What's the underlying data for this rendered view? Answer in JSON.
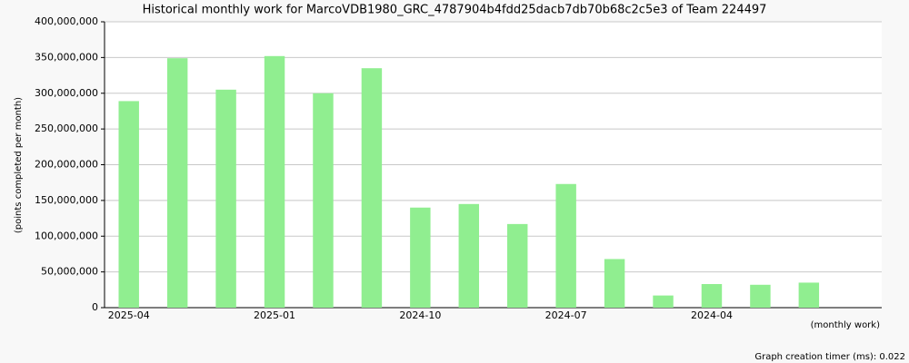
{
  "chart_data": {
    "type": "bar",
    "title": "Historical monthly work for MarcoVDB1980_GRC_4787904b4fdd25dacb7db70b68c2c5e3 of Team 224497",
    "y_label": "(points completed per month)",
    "x_label": "(monthly work)",
    "footer": "Graph creation timer (ms): 0.022",
    "categories": [
      "2025-04",
      null,
      null,
      "2025-01",
      null,
      null,
      "2024-10",
      null,
      null,
      "2024-07",
      null,
      null,
      "2024-04",
      null,
      null,
      null
    ],
    "values": [
      289000000,
      349000000,
      305000000,
      352000000,
      300000000,
      335000000,
      140000000,
      145000000,
      117000000,
      173000000,
      68000000,
      17000000,
      33000000,
      32000000,
      35000000,
      null
    ],
    "color": "#90ee90",
    "ylim": [
      0,
      400000000
    ],
    "yticks": [
      0,
      {
        "value": 50000000,
        "label": "50,000,000"
      },
      {
        "value": 100000000,
        "label": "100,000,000"
      },
      {
        "value": 150000000,
        "label": "150,000,000"
      },
      {
        "value": 200000000,
        "label": "200,000,000"
      },
      {
        "value": 250000000,
        "label": "250,000,000"
      },
      {
        "value": 300000000,
        "label": "300,000,000"
      },
      {
        "value": 350000000,
        "label": "350,000,000"
      },
      {
        "value": 400000000,
        "label": "400,000,000"
      }
    ],
    "grid": true
  }
}
